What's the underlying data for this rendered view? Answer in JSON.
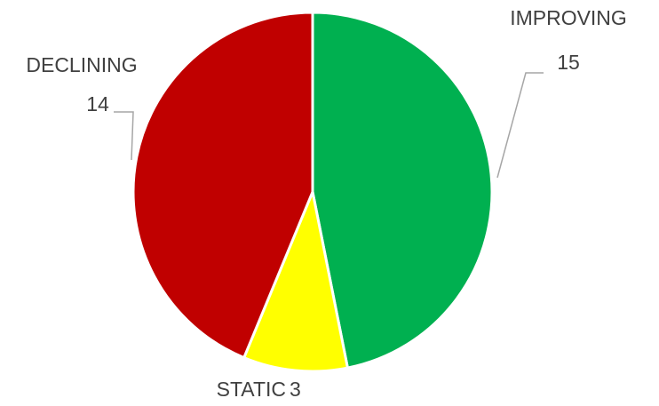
{
  "chart_data": {
    "type": "pie",
    "categories": [
      "IMPROVING",
      "STATIC",
      "DECLINING"
    ],
    "values": [
      15,
      3,
      14
    ],
    "colors": [
      "#00b050",
      "#ffff00",
      "#c00000"
    ]
  }
}
